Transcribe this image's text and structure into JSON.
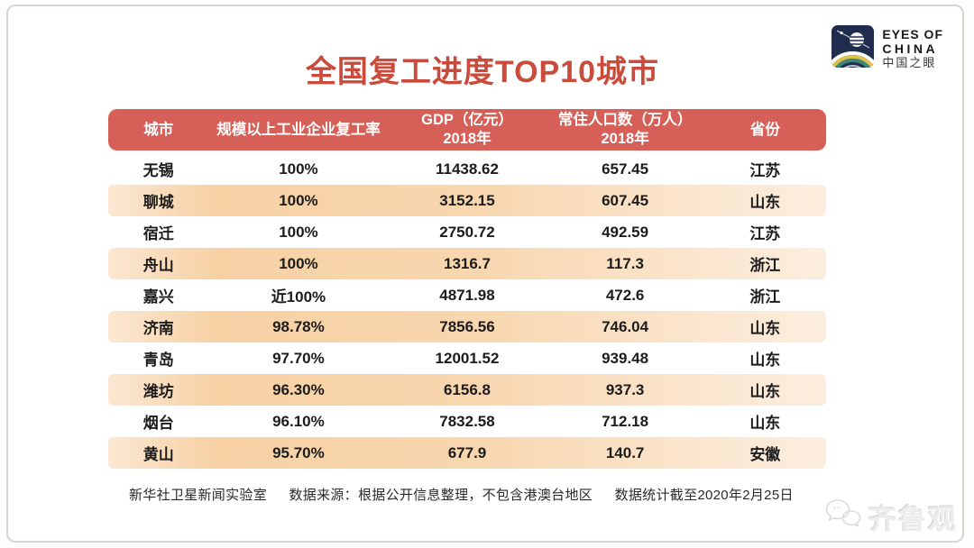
{
  "title": "全国复工进度TOP10城市",
  "logo": {
    "line1": "EYES OF",
    "line2": "CHINA",
    "line3": "中国之眼"
  },
  "chart_data": {
    "type": "table",
    "title": "全国复工进度TOP10城市",
    "headers": [
      {
        "label": "城市",
        "sub": ""
      },
      {
        "label": "规模以上工业企业复工率",
        "sub": ""
      },
      {
        "label": "GDP（亿元）",
        "sub": "2018年"
      },
      {
        "label": "常住人口数（万人）",
        "sub": "2018年"
      },
      {
        "label": "省份",
        "sub": ""
      }
    ],
    "rows": [
      [
        "无锡",
        "100%",
        "11438.62",
        "657.45",
        "江苏"
      ],
      [
        "聊城",
        "100%",
        "3152.15",
        "607.45",
        "山东"
      ],
      [
        "宿迁",
        "100%",
        "2750.72",
        "492.59",
        "江苏"
      ],
      [
        "舟山",
        "100%",
        "1316.7",
        "117.3",
        "浙江"
      ],
      [
        "嘉兴",
        "近100%",
        "4871.98",
        "472.6",
        "浙江"
      ],
      [
        "济南",
        "98.78%",
        "7856.56",
        "746.04",
        "山东"
      ],
      [
        "青岛",
        "97.70%",
        "12001.52",
        "939.48",
        "山东"
      ],
      [
        "潍坊",
        "96.30%",
        "6156.8",
        "937.3",
        "山东"
      ],
      [
        "烟台",
        "96.10%",
        "7832.58",
        "712.18",
        "山东"
      ],
      [
        "黄山",
        "95.70%",
        "677.9",
        "140.7",
        "安徽"
      ]
    ]
  },
  "footer": {
    "lab": "新华社卫星新闻实验室",
    "source": "数据来源：根据公开信息整理，不包含港澳台地区",
    "cutoff": "数据统计截至2020年2月25日"
  },
  "watermark": {
    "label": "齐鲁观"
  },
  "colors": {
    "title": "#c84b3c",
    "header_bg": "#d66058",
    "row_highlight": "#f8d5ac",
    "logo_navy": "#1f2c4e"
  }
}
